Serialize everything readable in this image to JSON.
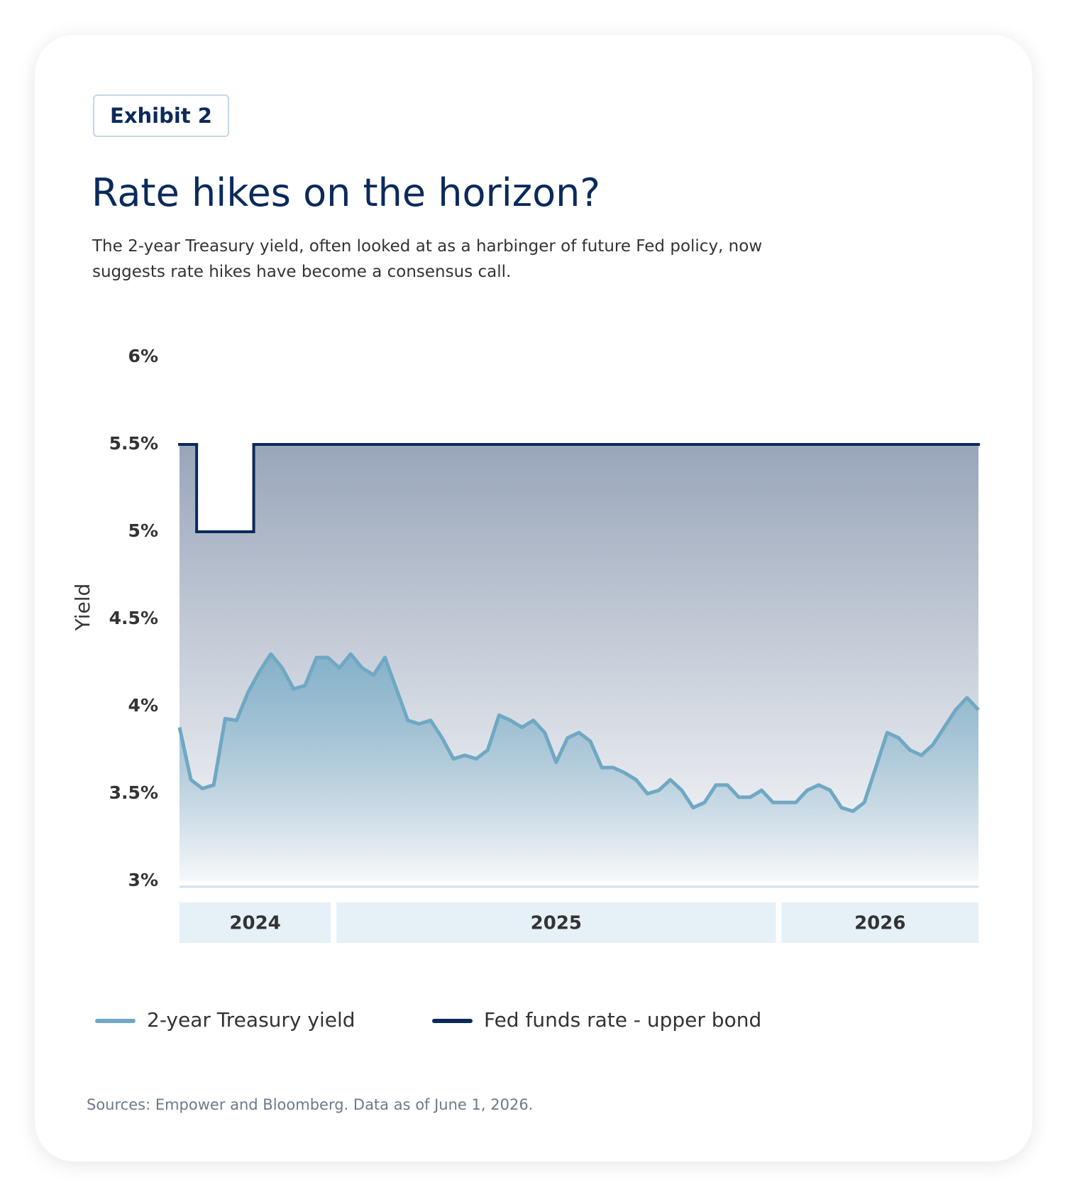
{
  "header": {
    "badge": "Exhibit 2"
  },
  "chart_data": {
    "type": "line",
    "title": "Rate hikes on the horizon?",
    "subtitle": [
      "The 2-year Treasury yield, often looked at as a harbinger of future Fed policy, now",
      "suggests rate hikes have become a consensus call."
    ],
    "y_label": "Yield",
    "categories": [
      "2024",
      "2024",
      "2024",
      "2024",
      "2024",
      "2024",
      "2024",
      "2024",
      "2024",
      "2024",
      "2024",
      "2024",
      "2024",
      "2024",
      "2025",
      "2025",
      "2025",
      "2025",
      "2025",
      "2025",
      "2025",
      "2025",
      "2025",
      "2025",
      "2025",
      "2025",
      "2025",
      "2025",
      "2025",
      "2025",
      "2025",
      "2025",
      "2025",
      "2025",
      "2025",
      "2025",
      "2025",
      "2025",
      "2025",
      "2025",
      "2025",
      "2025",
      "2025",
      "2025",
      "2025",
      "2025",
      "2025",
      "2025",
      "2025",
      "2025",
      "2025",
      "2025",
      "2025",
      "2026",
      "2026",
      "2026",
      "2026",
      "2026",
      "2026",
      "2026",
      "2026",
      "2026",
      "2026",
      "2026",
      "2026",
      "2026",
      "2026",
      "2026",
      "2026",
      "2026",
      "2026"
    ],
    "series": [
      {
        "name": "2-year Treasury yield",
        "color": "#6fa8c4",
        "values": [
          3.88,
          3.58,
          3.53,
          3.55,
          3.93,
          3.92,
          4.08,
          4.2,
          4.3,
          4.22,
          4.1,
          4.12,
          4.28,
          4.28,
          4.22,
          4.3,
          4.22,
          4.18,
          4.28,
          4.1,
          3.92,
          3.9,
          3.92,
          3.82,
          3.7,
          3.72,
          3.7,
          3.75,
          3.95,
          3.92,
          3.88,
          3.92,
          3.85,
          3.68,
          3.82,
          3.85,
          3.8,
          3.65,
          3.65,
          3.62,
          3.58,
          3.5,
          3.52,
          3.58,
          3.52,
          3.42,
          3.45,
          3.55,
          3.55,
          3.48,
          3.48,
          3.52,
          3.45,
          3.45,
          3.45,
          3.52,
          3.55,
          3.52,
          3.42,
          3.4,
          3.45,
          3.65,
          3.85,
          3.82,
          3.75,
          3.72,
          3.78,
          3.88,
          3.98,
          4.05,
          3.98
        ]
      },
      {
        "name": "Fed funds rate - upper bond",
        "color": "#0b2a5b",
        "values": [
          5.5,
          5.5,
          5,
          5,
          5,
          5,
          5,
          5.5,
          5.5,
          5.5,
          5.5,
          5.5,
          5.5,
          5.5,
          5.5,
          5.5,
          5.5,
          5.5,
          5.5,
          5.5,
          5.5,
          5.5,
          5.5,
          5.5,
          5.5,
          5.5,
          5.5,
          5.5,
          5.5,
          5.5,
          5.5,
          5.5,
          5.5,
          5.5,
          5.5,
          5.5,
          5.5,
          5.5,
          5.5,
          5.5,
          5.5,
          5.5,
          5.5,
          5.5,
          5.5,
          5.5,
          5.5,
          5.5,
          5.5,
          5.5,
          5.5,
          5.5,
          5.5,
          5.5,
          5.5,
          5.5,
          5.5,
          5.5,
          5.5,
          5.5,
          5.5,
          5.5,
          5.5,
          5.5,
          5.5,
          5.5,
          5.5,
          5.5,
          5.5,
          5.5,
          5.5
        ]
      }
    ],
    "ylim": [
      3,
      6
    ],
    "yticks": [
      {
        "value": 3,
        "label": "3%"
      },
      {
        "value": 3.5,
        "label": "3.5%"
      },
      {
        "value": 4,
        "label": "4%"
      },
      {
        "value": 4.5,
        "label": "4.5%"
      },
      {
        "value": 5,
        "label": "5%"
      },
      {
        "value": 5.5,
        "label": "5.5%"
      },
      {
        "value": 6,
        "label": "6%"
      }
    ],
    "grid": false,
    "source": "Sources: Empower and Bloomberg. Data as of June 1, 2026."
  }
}
